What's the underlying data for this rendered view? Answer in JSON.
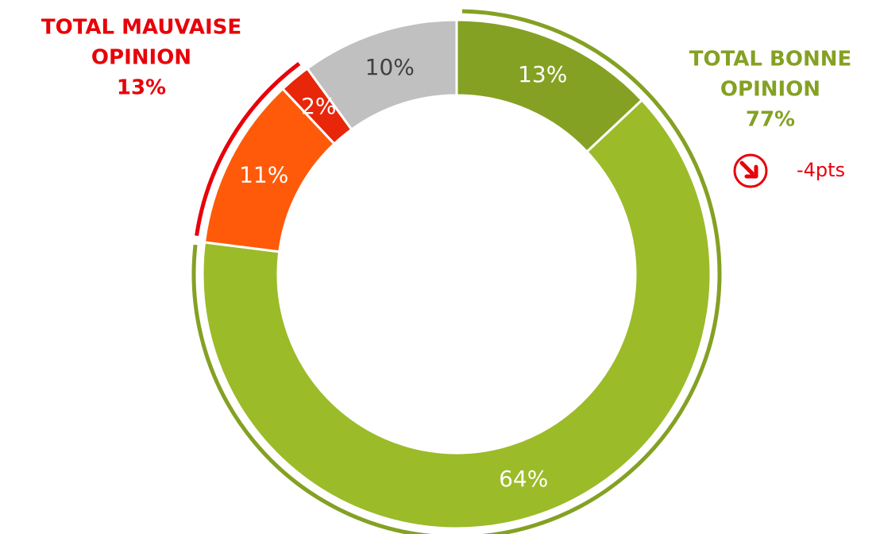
{
  "chart_data": {
    "type": "donut",
    "values": [
      13,
      64,
      11,
      2,
      10
    ],
    "value_labels": [
      "13%",
      "64%",
      "11%",
      "2%",
      "10%"
    ],
    "colors": [
      "#84a123",
      "#9bbb29",
      "#ff5a0a",
      "#e8260a",
      "#c0c0c0"
    ],
    "label_colors": [
      "#ffffff",
      "#ffffff",
      "#ffffff",
      "#ffffff",
      "#404040"
    ],
    "groups": [
      {
        "title_lines": [
          "TOTAL BONNE",
          "OPINION"
        ],
        "value": 77,
        "value_label": "77%",
        "color": "#84a123"
      },
      {
        "title_lines": [
          "TOTAL MAUVAISE",
          "OPINION"
        ],
        "value": 13,
        "value_label": "13%",
        "color": "#e8000a"
      }
    ],
    "annotation": "-4pts"
  }
}
